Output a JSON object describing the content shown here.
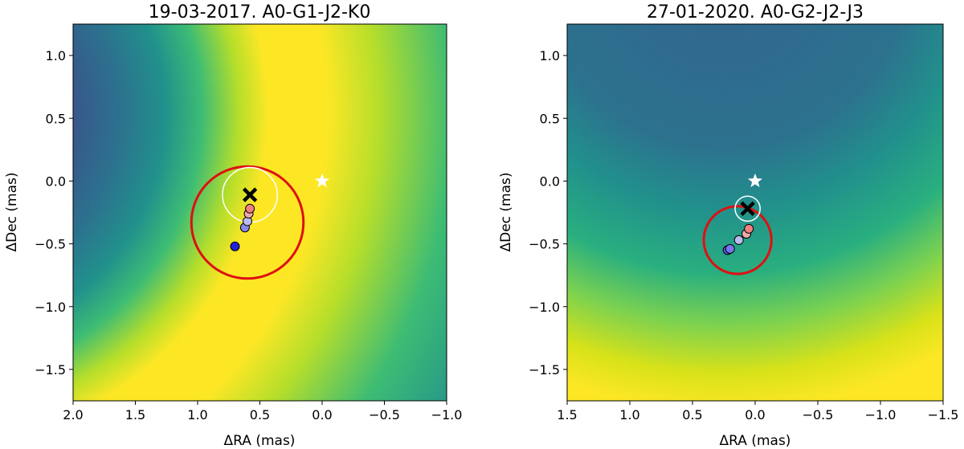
{
  "chart_data": [
    {
      "type": "heatmap",
      "title": "19-03-2017. A0-G1-J2-K0",
      "xlabel": "ΔRA (mas)",
      "ylabel": "ΔDec (mas)",
      "xlim": [
        2.0,
        -1.0
      ],
      "ylim": [
        -1.75,
        1.25
      ],
      "xticks": [
        2.0,
        1.5,
        1.0,
        0.5,
        0.0,
        -0.5,
        -1.0
      ],
      "xtick_labels": [
        "2.0",
        "1.5",
        "1.0",
        "0.5",
        "0.0",
        "−0.5",
        "−1.0"
      ],
      "yticks": [
        1.0,
        0.5,
        0.0,
        -0.5,
        -1.0,
        -1.5
      ],
      "ytick_labels": [
        "1.0",
        "0.5",
        "0.0",
        "−0.5",
        "−1.0",
        "−1.5"
      ],
      "colormap": "viridis",
      "grid": false,
      "star": {
        "x": 0.0,
        "y": 0.0,
        "color": "#ffffff"
      },
      "best_fit_cross": {
        "x": 0.58,
        "y": -0.11,
        "color": "#000000"
      },
      "white_circle": {
        "x": 0.58,
        "y": -0.11,
        "r": 0.22,
        "color": "#ffffff"
      },
      "red_circle": {
        "x": 0.6,
        "y": -0.33,
        "r": 0.45,
        "color": "#dd1111"
      },
      "points": [
        {
          "x": 0.7,
          "y": -0.52,
          "color": "#2222dd"
        },
        {
          "x": 0.62,
          "y": -0.37,
          "color": "#8888ee"
        },
        {
          "x": 0.6,
          "y": -0.32,
          "color": "#bbbbee"
        },
        {
          "x": 0.59,
          "y": -0.26,
          "color": "#eeaaaa"
        },
        {
          "x": 0.58,
          "y": -0.22,
          "color": "#f08080"
        }
      ]
    },
    {
      "type": "heatmap",
      "title": "27-01-2020. A0-G2-J2-J3",
      "xlabel": "ΔRA (mas)",
      "ylabel": "ΔDec (mas)",
      "xlim": [
        1.5,
        -1.5
      ],
      "ylim": [
        -1.75,
        1.25
      ],
      "xticks": [
        1.5,
        1.0,
        0.5,
        0.0,
        -0.5,
        -1.0,
        -1.5
      ],
      "xtick_labels": [
        "1.5",
        "1.0",
        "0.5",
        "0.0",
        "−0.5",
        "−1.0",
        "−1.5"
      ],
      "yticks": [
        1.0,
        0.5,
        0.0,
        -0.5,
        -1.0,
        -1.5
      ],
      "ytick_labels": [
        "1.0",
        "0.5",
        "0.0",
        "−0.5",
        "−1.0",
        "−1.5"
      ],
      "colormap": "viridis",
      "grid": false,
      "star": {
        "x": 0.0,
        "y": 0.0,
        "color": "#ffffff"
      },
      "best_fit_cross": {
        "x": 0.06,
        "y": -0.22,
        "color": "#000000"
      },
      "white_circle": {
        "x": 0.06,
        "y": -0.22,
        "r": 0.1,
        "color": "#ffffff"
      },
      "red_circle": {
        "x": 0.14,
        "y": -0.47,
        "r": 0.27,
        "color": "#dd1111"
      },
      "points": [
        {
          "x": 0.22,
          "y": -0.55,
          "color": "#5555dd"
        },
        {
          "x": 0.2,
          "y": -0.54,
          "color": "#7777ee"
        },
        {
          "x": 0.13,
          "y": -0.47,
          "color": "#bbbbee"
        },
        {
          "x": 0.07,
          "y": -0.42,
          "color": "#eeaaaa"
        },
        {
          "x": 0.05,
          "y": -0.38,
          "color": "#f08080"
        }
      ]
    }
  ]
}
